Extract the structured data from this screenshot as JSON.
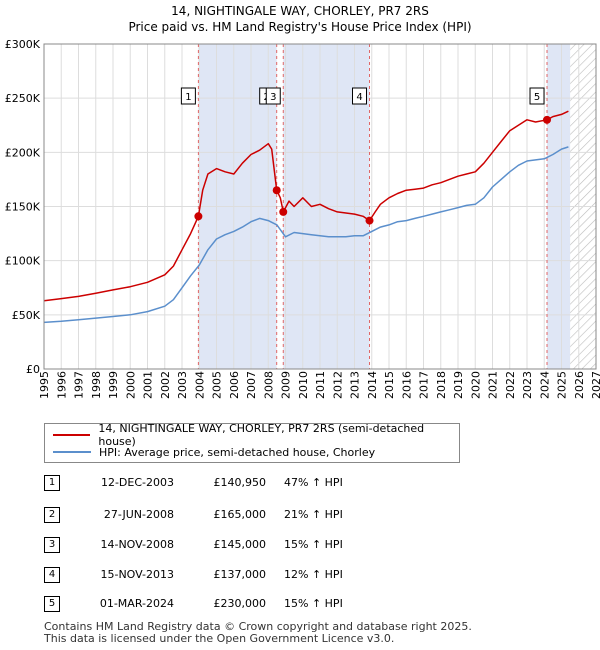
{
  "title_line1": "14, NIGHTINGALE WAY, CHORLEY, PR7 2RS",
  "title_line2": "Price paid vs. HM Land Registry's House Price Index (HPI)",
  "colors": {
    "property": "#cc0000",
    "hpi": "#5b8fcc",
    "shade": "#dfe6f5",
    "vline": "#e06666",
    "grid": "#dddddd"
  },
  "chart_data": {
    "type": "line",
    "title": "Price paid vs. HM Land Registry's House Price Index (HPI)",
    "xlabel": "",
    "ylabel": "",
    "xlim": [
      1995,
      2027
    ],
    "ylim": [
      0,
      300000
    ],
    "x_ticks": [
      1995,
      1996,
      1997,
      1998,
      1999,
      2000,
      2001,
      2002,
      2003,
      2004,
      2005,
      2006,
      2007,
      2008,
      2009,
      2010,
      2011,
      2012,
      2013,
      2014,
      2015,
      2016,
      2017,
      2018,
      2019,
      2020,
      2021,
      2022,
      2023,
      2024,
      2025,
      2026,
      2027
    ],
    "y_ticks": [
      0,
      50000,
      100000,
      150000,
      200000,
      250000,
      300000
    ],
    "y_tick_labels": [
      "£0",
      "£50K",
      "£100K",
      "£150K",
      "£200K",
      "£250K",
      "£300K"
    ],
    "forecast_from": 2025.5,
    "series": [
      {
        "name": "14, NIGHTINGALE WAY, CHORLEY, PR7 2RS (semi-detached house)",
        "x": [
          1995,
          1996,
          1997,
          1998,
          1999,
          2000,
          2001,
          2002,
          2002.5,
          2003,
          2003.5,
          2003.95,
          2004.2,
          2004.5,
          2005,
          2005.5,
          2006,
          2006.5,
          2007,
          2007.5,
          2008,
          2008.2,
          2008.49,
          2008.7,
          2008.87,
          2009.2,
          2009.5,
          2010,
          2010.5,
          2011,
          2011.5,
          2012,
          2012.5,
          2013,
          2013.5,
          2013.87,
          2014.2,
          2014.5,
          2015,
          2015.5,
          2016,
          2016.5,
          2017,
          2017.5,
          2018,
          2018.5,
          2019,
          2019.5,
          2020,
          2020.5,
          2021,
          2021.5,
          2022,
          2022.5,
          2023,
          2023.5,
          2024.16,
          2024.5,
          2025,
          2025.4
        ],
        "y": [
          63000,
          65000,
          67000,
          70000,
          73000,
          76000,
          80000,
          87000,
          95000,
          110000,
          125000,
          140950,
          165000,
          180000,
          185000,
          182000,
          180000,
          190000,
          198000,
          202000,
          208000,
          203000,
          165000,
          158000,
          145000,
          155000,
          150000,
          158000,
          150000,
          152000,
          148000,
          145000,
          144000,
          143000,
          141000,
          137000,
          145000,
          152000,
          158000,
          162000,
          165000,
          166000,
          167000,
          170000,
          172000,
          175000,
          178000,
          180000,
          182000,
          190000,
          200000,
          210000,
          220000,
          225000,
          230000,
          228000,
          230000,
          233000,
          235000,
          238000
        ]
      },
      {
        "name": "HPI: Average price, semi-detached house, Chorley",
        "x": [
          1995,
          1996,
          1997,
          1998,
          1999,
          2000,
          2001,
          2002,
          2002.5,
          2003,
          2003.5,
          2004,
          2004.5,
          2005,
          2005.5,
          2006,
          2006.5,
          2007,
          2007.5,
          2008,
          2008.5,
          2009,
          2009.5,
          2010,
          2010.5,
          2011,
          2011.5,
          2012,
          2012.5,
          2013,
          2013.5,
          2014,
          2014.5,
          2015,
          2015.5,
          2016,
          2016.5,
          2017,
          2017.5,
          2018,
          2018.5,
          2019,
          2019.5,
          2020,
          2020.5,
          2021,
          2021.5,
          2022,
          2022.5,
          2023,
          2023.5,
          2024,
          2024.5,
          2025,
          2025.4
        ],
        "y": [
          43000,
          44000,
          45500,
          47000,
          48500,
          50000,
          53000,
          58000,
          64000,
          75000,
          86000,
          96000,
          110000,
          120000,
          124000,
          127000,
          131000,
          136000,
          139000,
          137000,
          133000,
          122000,
          126000,
          125000,
          124000,
          123000,
          122000,
          122000,
          122000,
          123000,
          123000,
          127000,
          131000,
          133000,
          136000,
          137000,
          139000,
          141000,
          143000,
          145000,
          147000,
          149000,
          151000,
          152000,
          158000,
          168000,
          175000,
          182000,
          188000,
          192000,
          193000,
          194000,
          198000,
          203000,
          205000
        ]
      }
    ],
    "sales": [
      {
        "label": "1",
        "date": "12-DEC-2003",
        "x": 2003.95,
        "price": 140950,
        "pct": "47% ↑ HPI"
      },
      {
        "label": "2",
        "date": "27-JUN-2008",
        "x": 2008.49,
        "price": 165000,
        "pct": "21% ↑ HPI"
      },
      {
        "label": "3",
        "date": "14-NOV-2008",
        "x": 2008.87,
        "price": 145000,
        "pct": "15% ↑ HPI"
      },
      {
        "label": "4",
        "date": "15-NOV-2013",
        "x": 2013.87,
        "price": 137000,
        "pct": "12% ↑ HPI"
      },
      {
        "label": "5",
        "date": "01-MAR-2024",
        "x": 2024.16,
        "price": 230000,
        "pct": "15% ↑ HPI"
      }
    ],
    "legend_position": "below"
  },
  "legend": {
    "property": "14, NIGHTINGALE WAY, CHORLEY, PR7 2RS (semi-detached house)",
    "hpi": "HPI: Average price, semi-detached house, Chorley"
  },
  "table": [
    {
      "num": "1",
      "date": "12-DEC-2003",
      "price": "£140,950",
      "pct": "47% ↑ HPI"
    },
    {
      "num": "2",
      "date": "27-JUN-2008",
      "price": "£165,000",
      "pct": "21% ↑ HPI"
    },
    {
      "num": "3",
      "date": "14-NOV-2008",
      "price": "£145,000",
      "pct": "15% ↑ HPI"
    },
    {
      "num": "4",
      "date": "15-NOV-2013",
      "price": "£137,000",
      "pct": "12% ↑ HPI"
    },
    {
      "num": "5",
      "date": "01-MAR-2024",
      "price": "£230,000",
      "pct": "15% ↑ HPI"
    }
  ],
  "footer": {
    "line1": "Contains HM Land Registry data © Crown copyright and database right 2025.",
    "line2": "This data is licensed under the Open Government Licence v3.0."
  }
}
